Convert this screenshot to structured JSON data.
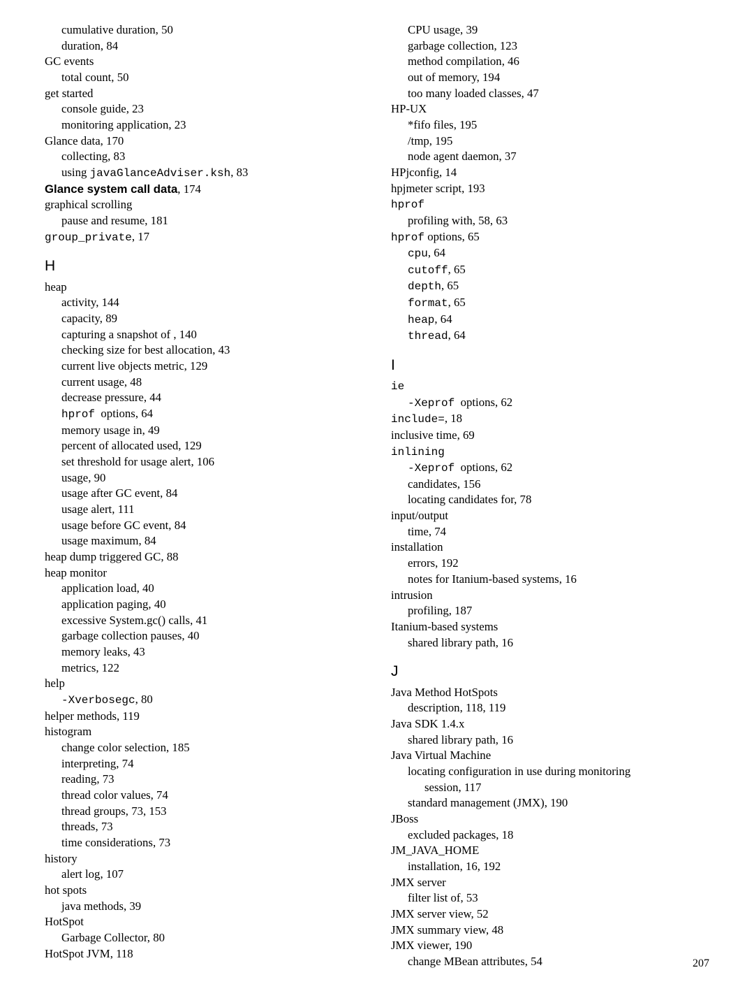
{
  "left": {
    "items": [
      {
        "indent": 1,
        "text": "cumulative duration, 50"
      },
      {
        "indent": 1,
        "text": "duration, 84"
      },
      {
        "indent": 0,
        "text": "GC events"
      },
      {
        "indent": 1,
        "text": "total count, 50"
      },
      {
        "indent": 0,
        "text": "get started"
      },
      {
        "indent": 1,
        "text": "console guide, 23"
      },
      {
        "indent": 1,
        "text": "monitoring application, 23"
      },
      {
        "indent": 0,
        "text": "Glance data, 170"
      },
      {
        "indent": 1,
        "text": "collecting, 83"
      },
      {
        "indent": 1,
        "html": "using <span class='mono'>javaGlanceAdviser.ksh</span>, 83"
      },
      {
        "indent": 0,
        "html": "<span class='sans-bold'>Glance system call data</span>, 174"
      },
      {
        "indent": 0,
        "text": "graphical scrolling"
      },
      {
        "indent": 1,
        "text": "pause and resume, 181"
      },
      {
        "indent": 0,
        "html": "<span class='mono'>group_private</span>, 17"
      }
    ]
  },
  "left_H_header": "H",
  "left_H": {
    "items": [
      {
        "indent": 0,
        "text": "heap"
      },
      {
        "indent": 1,
        "text": "activity, 144"
      },
      {
        "indent": 1,
        "text": "capacity, 89"
      },
      {
        "indent": 1,
        "text": "capturing a snapshot of , 140"
      },
      {
        "indent": 1,
        "text": "checking size for best allocation, 43"
      },
      {
        "indent": 1,
        "text": "current live objects metric, 129"
      },
      {
        "indent": 1,
        "text": "current usage, 48"
      },
      {
        "indent": 1,
        "text": "decrease pressure, 44"
      },
      {
        "indent": 1,
        "html": "<span class='mono'>hprof</span>&nbsp; options, 64"
      },
      {
        "indent": 1,
        "text": "memory usage in, 49"
      },
      {
        "indent": 1,
        "text": "percent of allocated used, 129"
      },
      {
        "indent": 1,
        "text": "set threshold for usage alert, 106"
      },
      {
        "indent": 1,
        "text": "usage, 90"
      },
      {
        "indent": 1,
        "text": "usage after GC event, 84"
      },
      {
        "indent": 1,
        "text": "usage alert, 111"
      },
      {
        "indent": 1,
        "text": "usage before GC event, 84"
      },
      {
        "indent": 1,
        "text": "usage maximum, 84"
      },
      {
        "indent": 0,
        "text": "heap dump triggered GC, 88"
      },
      {
        "indent": 0,
        "text": "heap monitor"
      },
      {
        "indent": 1,
        "text": "application load, 40"
      },
      {
        "indent": 1,
        "text": "application paging, 40"
      },
      {
        "indent": 1,
        "text": "excessive System.gc() calls, 41"
      },
      {
        "indent": 1,
        "text": "garbage collection pauses, 40"
      },
      {
        "indent": 1,
        "text": "memory leaks, 43"
      },
      {
        "indent": 1,
        "text": "metrics, 122"
      },
      {
        "indent": 0,
        "text": "help"
      },
      {
        "indent": 1,
        "html": "<span class='mono'>-Xverbosegc</span>, 80"
      },
      {
        "indent": 0,
        "text": "helper methods, 119"
      },
      {
        "indent": 0,
        "text": "histogram"
      },
      {
        "indent": 1,
        "text": "change color selection, 185"
      },
      {
        "indent": 1,
        "text": "interpreting, 74"
      },
      {
        "indent": 1,
        "text": "reading, 73"
      },
      {
        "indent": 1,
        "text": "thread color values, 74"
      },
      {
        "indent": 1,
        "text": "thread groups, 73, 153"
      },
      {
        "indent": 1,
        "text": "threads, 73"
      },
      {
        "indent": 1,
        "text": "time considerations, 73"
      },
      {
        "indent": 0,
        "text": "history"
      },
      {
        "indent": 1,
        "text": "alert log, 107"
      },
      {
        "indent": 0,
        "text": "hot spots"
      },
      {
        "indent": 1,
        "text": "java methods, 39"
      },
      {
        "indent": 0,
        "text": "HotSpot"
      },
      {
        "indent": 1,
        "text": "Garbage Collector, 80"
      },
      {
        "indent": 0,
        "text": "HotSpot JVM, 118"
      }
    ]
  },
  "right_top": {
    "items": [
      {
        "indent": 1,
        "text": "CPU usage, 39"
      },
      {
        "indent": 1,
        "text": "garbage collection, 123"
      },
      {
        "indent": 1,
        "text": "method compilation, 46"
      },
      {
        "indent": 1,
        "text": "out of memory, 194"
      },
      {
        "indent": 1,
        "text": "too many loaded classes, 47"
      },
      {
        "indent": 0,
        "text": "HP-UX"
      },
      {
        "indent": 1,
        "text": "*fifo files, 195"
      },
      {
        "indent": 1,
        "text": "/tmp, 195"
      },
      {
        "indent": 1,
        "text": "node agent daemon, 37"
      },
      {
        "indent": 0,
        "text": "HPjconfig, 14"
      },
      {
        "indent": 0,
        "text": "hpjmeter script, 193"
      },
      {
        "indent": 0,
        "html": "<span class='mono'>hprof</span>"
      },
      {
        "indent": 1,
        "text": "profiling with, 58, 63"
      },
      {
        "indent": 0,
        "html": "<span class='mono'>hprof</span> options, 65"
      },
      {
        "indent": 1,
        "html": "<span class='mono'>cpu</span>, 64"
      },
      {
        "indent": 1,
        "html": "<span class='mono'>cutoff</span>, 65"
      },
      {
        "indent": 1,
        "html": "<span class='mono'>depth</span>, 65"
      },
      {
        "indent": 1,
        "html": "<span class='mono'>format</span>, 65"
      },
      {
        "indent": 1,
        "html": "<span class='mono'>heap</span>, 64"
      },
      {
        "indent": 1,
        "html": "<span class='mono'>thread</span>, 64"
      }
    ]
  },
  "right_I_header": "I",
  "right_I": {
    "items": [
      {
        "indent": 0,
        "html": "<span class='mono'>ie</span>"
      },
      {
        "indent": 1,
        "html": "<span class='mono'>-Xeprof</span>&nbsp; options, 62"
      },
      {
        "indent": 0,
        "html": "<span class='mono'>include=</span>, 18"
      },
      {
        "indent": 0,
        "text": "inclusive time, 69"
      },
      {
        "indent": 0,
        "html": "<span class='mono'>inlining</span>"
      },
      {
        "indent": 1,
        "html": "<span class='mono'>-Xeprof</span>&nbsp; options, 62"
      },
      {
        "indent": 1,
        "text": "candidates, 156"
      },
      {
        "indent": 1,
        "text": "locating candidates for, 78"
      },
      {
        "indent": 0,
        "text": "input/output"
      },
      {
        "indent": 1,
        "text": "time, 74"
      },
      {
        "indent": 0,
        "text": "installation"
      },
      {
        "indent": 1,
        "text": "errors, 192"
      },
      {
        "indent": 1,
        "text": "notes for Itanium-based systems, 16"
      },
      {
        "indent": 0,
        "text": "intrusion"
      },
      {
        "indent": 1,
        "text": "profiling, 187"
      },
      {
        "indent": 0,
        "text": "Itanium-based systems"
      },
      {
        "indent": 1,
        "text": "shared library path, 16"
      }
    ]
  },
  "right_J_header": "J",
  "right_J": {
    "items": [
      {
        "indent": 0,
        "text": "Java Method HotSpots"
      },
      {
        "indent": 1,
        "text": "description, 118, 119"
      },
      {
        "indent": 0,
        "text": "Java SDK 1.4.x"
      },
      {
        "indent": 1,
        "text": "shared library path, 16"
      },
      {
        "indent": 0,
        "text": "Java Virtual Machine"
      },
      {
        "indent": 1,
        "text": "locating configuration in use during monitoring"
      },
      {
        "indent": 2,
        "text": "session, 117"
      },
      {
        "indent": 1,
        "text": "standard management (JMX), 190"
      },
      {
        "indent": 0,
        "text": "JBoss"
      },
      {
        "indent": 1,
        "text": "excluded packages, 18"
      },
      {
        "indent": 0,
        "text": "JM_JAVA_HOME"
      },
      {
        "indent": 1,
        "text": "installation, 16, 192"
      },
      {
        "indent": 0,
        "text": "JMX server"
      },
      {
        "indent": 1,
        "text": "filter list of, 53"
      },
      {
        "indent": 0,
        "text": "JMX server view, 52"
      },
      {
        "indent": 0,
        "text": "JMX summary view, 48"
      },
      {
        "indent": 0,
        "text": "JMX viewer, 190"
      },
      {
        "indent": 1,
        "text": "change MBean attributes, 54"
      }
    ]
  },
  "page_number": "207"
}
